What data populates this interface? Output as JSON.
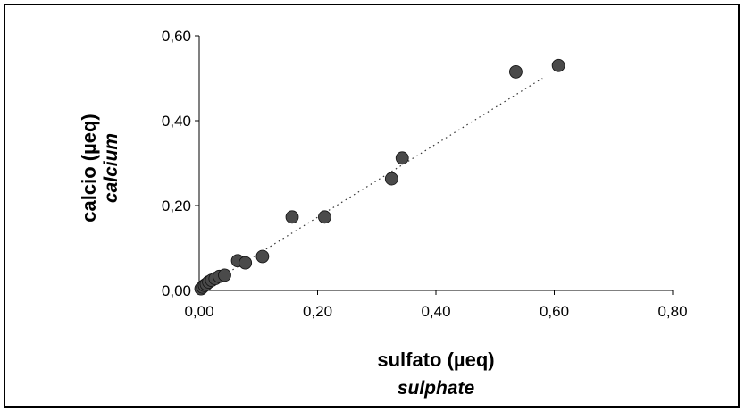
{
  "chart_data": {
    "type": "scatter",
    "xlabel": "sulfato (µeq)",
    "xlabel_secondary": "sulphate",
    "ylabel": "calcio (µeq)",
    "ylabel_secondary": "calcium",
    "xlim": [
      0,
      0.8
    ],
    "ylim": [
      0,
      0.6
    ],
    "x_ticks": [
      "0,00",
      "0,20",
      "0,40",
      "0,60",
      "0,80"
    ],
    "y_ticks": [
      "0,00",
      "0,20",
      "0,40",
      "0,60"
    ],
    "grid": false,
    "legend": "none",
    "marker_color": "#4a4a4a",
    "trendline": {
      "style": "dotted",
      "from": [
        0,
        0
      ],
      "to": [
        0.58,
        0.5
      ]
    },
    "points": [
      {
        "x": 0.003,
        "y": 0.004
      },
      {
        "x": 0.006,
        "y": 0.008
      },
      {
        "x": 0.009,
        "y": 0.012
      },
      {
        "x": 0.012,
        "y": 0.015
      },
      {
        "x": 0.016,
        "y": 0.02
      },
      {
        "x": 0.021,
        "y": 0.024
      },
      {
        "x": 0.027,
        "y": 0.028
      },
      {
        "x": 0.034,
        "y": 0.033
      },
      {
        "x": 0.043,
        "y": 0.036
      },
      {
        "x": 0.065,
        "y": 0.07
      },
      {
        "x": 0.078,
        "y": 0.065
      },
      {
        "x": 0.107,
        "y": 0.08
      },
      {
        "x": 0.157,
        "y": 0.173
      },
      {
        "x": 0.212,
        "y": 0.173
      },
      {
        "x": 0.325,
        "y": 0.263
      },
      {
        "x": 0.343,
        "y": 0.312
      },
      {
        "x": 0.535,
        "y": 0.515
      },
      {
        "x": 0.607,
        "y": 0.53
      }
    ]
  }
}
